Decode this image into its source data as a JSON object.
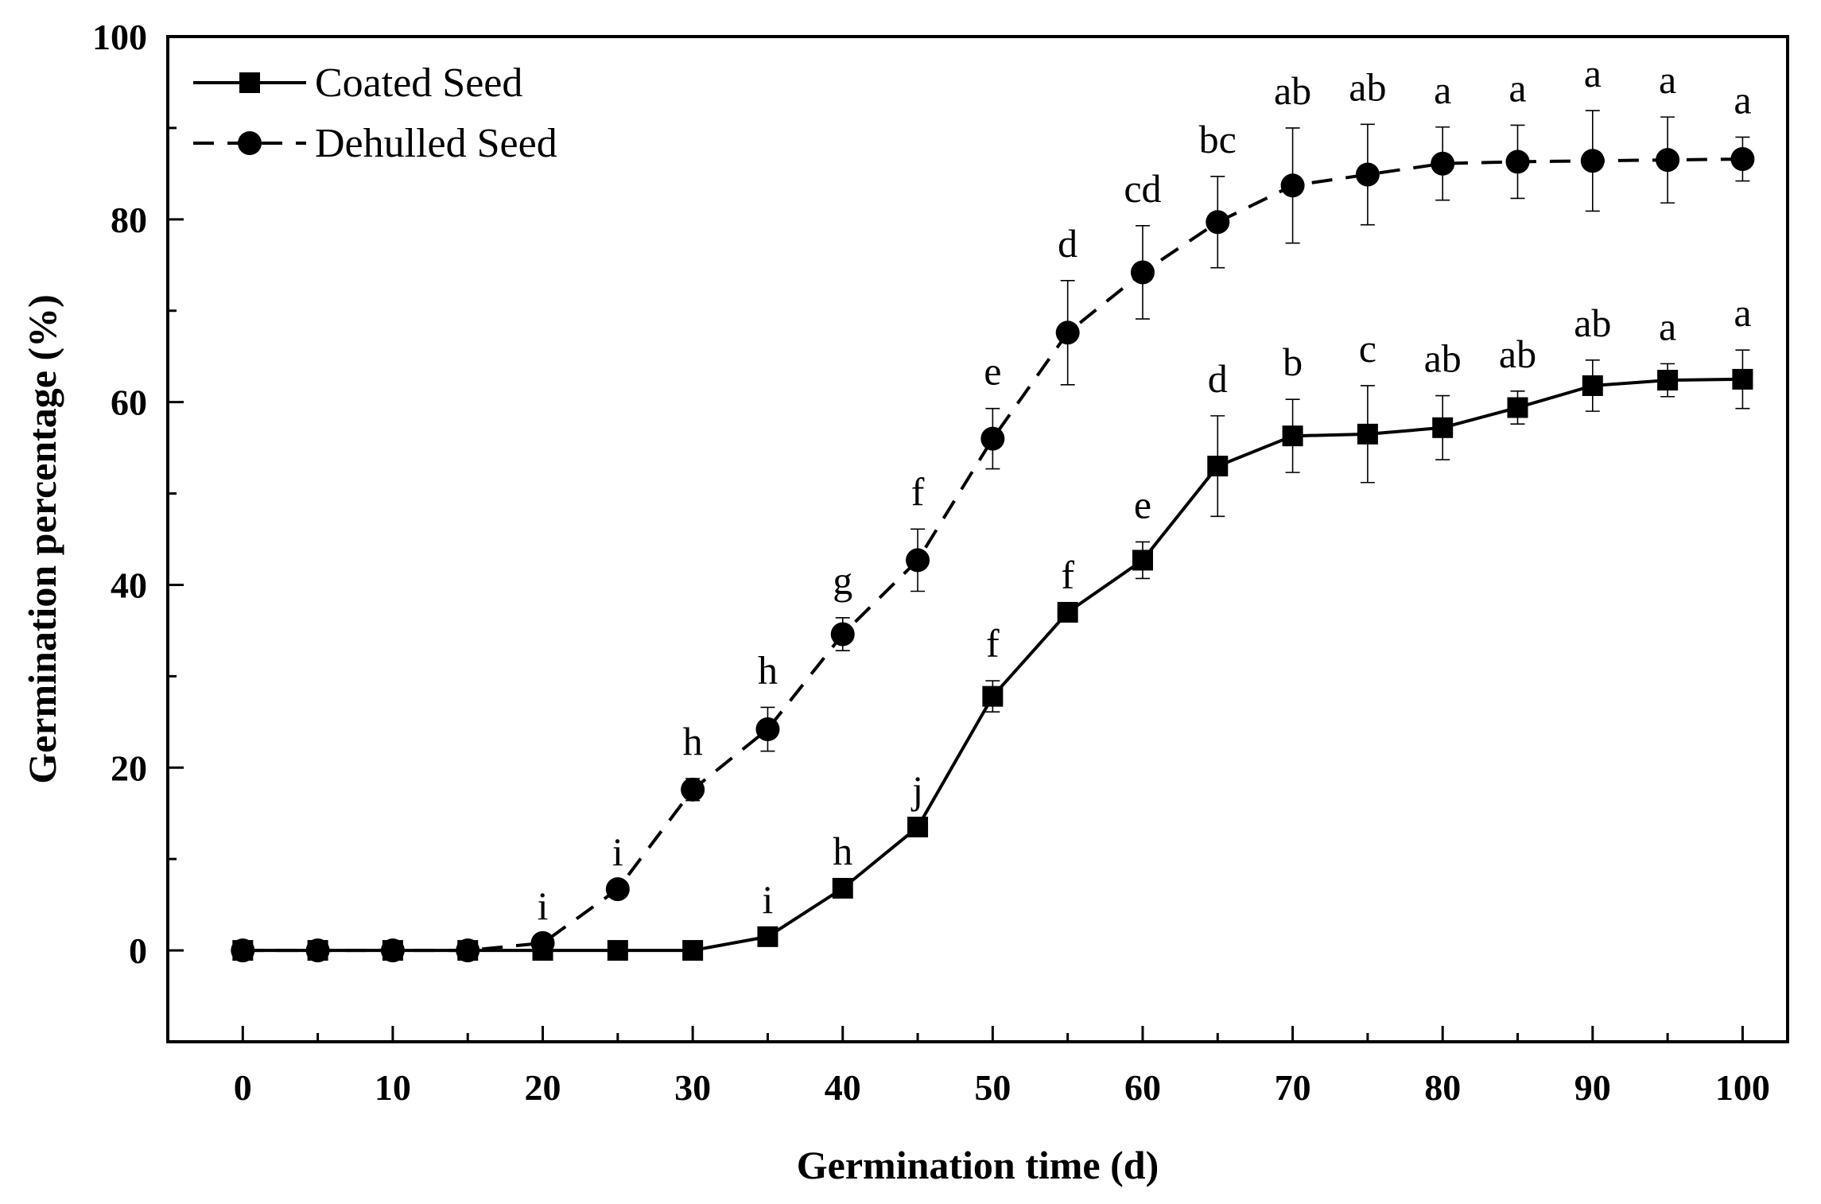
{
  "chart_data": {
    "type": "line",
    "title": "",
    "xlabel": "Germination time (d)",
    "ylabel": "Germination percentage (%)",
    "xlim": [
      -5,
      103
    ],
    "ylim": [
      -10,
      100
    ],
    "xticks": [
      0,
      10,
      20,
      30,
      40,
      50,
      60,
      70,
      80,
      90,
      100
    ],
    "yticks": [
      0,
      20,
      40,
      60,
      80,
      100
    ],
    "grid": false,
    "legend_position": "top-left",
    "x": [
      0,
      5,
      10,
      15,
      20,
      25,
      30,
      35,
      40,
      45,
      50,
      55,
      60,
      65,
      70,
      75,
      80,
      85,
      90,
      95,
      100
    ],
    "series": [
      {
        "name": "Coated Seed",
        "line_style": "solid",
        "marker": "square",
        "color": "#000000",
        "values": [
          0,
          0,
          0,
          0,
          0,
          0,
          0,
          1.5,
          6.8,
          13.5,
          27.8,
          37,
          42.7,
          53,
          56.3,
          56.5,
          57.2,
          59.4,
          61.8,
          62.4,
          62.5
        ],
        "errors": [
          0,
          0,
          0,
          0,
          0,
          0,
          0,
          0,
          0,
          0,
          1.7,
          0,
          2,
          5.5,
          4,
          5.3,
          3.5,
          1.8,
          2.8,
          1.8,
          3.2
        ],
        "labels": [
          "",
          "",
          "",
          "",
          "",
          "",
          "",
          "i",
          "h",
          "j",
          "f",
          "f",
          "e",
          "d",
          "b",
          "c",
          "ab",
          "ab",
          "ab",
          "a",
          "a"
        ]
      },
      {
        "name": "Dehulled Seed",
        "line_style": "dashed",
        "marker": "circle",
        "color": "#000000",
        "values": [
          0,
          0,
          0,
          0,
          0.8,
          6.7,
          17.6,
          24.2,
          34.6,
          42.7,
          56,
          67.6,
          74.2,
          79.7,
          83.7,
          84.9,
          86.1,
          86.3,
          86.4,
          86.5,
          86.6
        ],
        "errors": [
          0,
          0,
          0,
          0,
          0,
          0,
          1.2,
          2.4,
          1.8,
          3.4,
          3.3,
          5.7,
          5.1,
          5,
          6.3,
          5.5,
          4,
          4,
          5.5,
          4.7,
          2.4
        ],
        "labels": [
          "",
          "",
          "",
          "",
          "i",
          "i",
          "h",
          "h",
          "g",
          "f",
          "e",
          "d",
          "cd",
          "bc",
          "ab",
          "ab",
          "a",
          "a",
          "a",
          "a",
          "a"
        ]
      }
    ]
  }
}
